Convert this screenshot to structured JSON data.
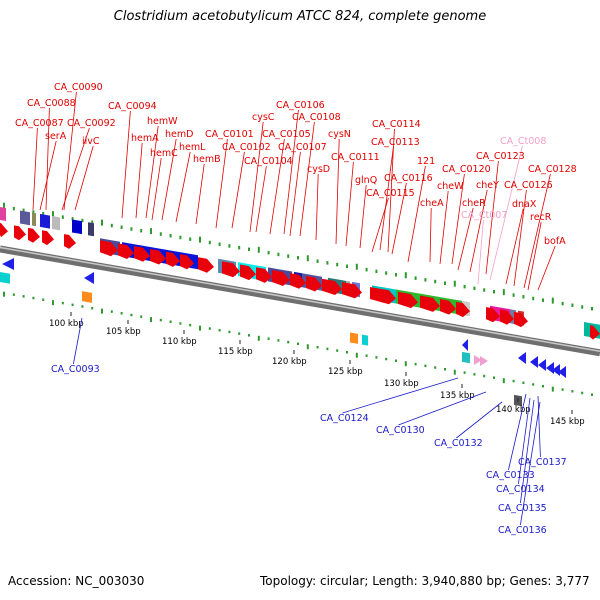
{
  "title": "Clostridium acetobutylicum ATCC 824, complete genome",
  "footer": {
    "accession": "Accession: NC_003030",
    "summary": "Topology: circular; Length: 3,940,880 bp; Genes: 3,777"
  },
  "colors": {
    "forward_gene": "#e8000b",
    "reverse_gene": "#1f1fe6",
    "forward_label": "#e00000",
    "reverse_label": "#1a1acc",
    "rna_label": "#f2a0c8",
    "backbone": "#8c8c8c",
    "tick_mark": "#2e9a2e"
  },
  "ticks": [
    "100 kbp",
    "105 kbp",
    "110 kbp",
    "115 kbp",
    "120 kbp",
    "125 kbp",
    "130 kbp",
    "135 kbp",
    "140 kbp",
    "145 kbp"
  ],
  "top_labels": [
    {
      "text": "CA_C0090",
      "kind": "forward"
    },
    {
      "text": "CA_C0088",
      "kind": "forward"
    },
    {
      "text": "CA_C0087",
      "kind": "forward"
    },
    {
      "text": "serA",
      "kind": "forward"
    },
    {
      "text": "ilvC",
      "kind": "forward"
    },
    {
      "text": "CA_C0092",
      "kind": "forward"
    },
    {
      "text": "CA_C0094",
      "kind": "forward"
    },
    {
      "text": "hemA",
      "kind": "forward"
    },
    {
      "text": "hemW",
      "kind": "forward"
    },
    {
      "text": "hemC",
      "kind": "forward"
    },
    {
      "text": "hemD",
      "kind": "forward"
    },
    {
      "text": "hemL",
      "kind": "forward"
    },
    {
      "text": "hemB",
      "kind": "forward"
    },
    {
      "text": "CA_C0101",
      "kind": "forward"
    },
    {
      "text": "CA_C0102",
      "kind": "forward"
    },
    {
      "text": "cysC",
      "kind": "forward"
    },
    {
      "text": "CA_C0104",
      "kind": "forward"
    },
    {
      "text": "CA_C0105",
      "kind": "forward"
    },
    {
      "text": "CA_C0106",
      "kind": "forward"
    },
    {
      "text": "CA_C0107",
      "kind": "forward"
    },
    {
      "text": "CA_C0108",
      "kind": "forward"
    },
    {
      "text": "cysD",
      "kind": "forward"
    },
    {
      "text": "cysN",
      "kind": "forward"
    },
    {
      "text": "CA_C0111",
      "kind": "forward"
    },
    {
      "text": "glnQ",
      "kind": "forward"
    },
    {
      "text": "CA_C0113",
      "kind": "forward"
    },
    {
      "text": "CA_C0114",
      "kind": "forward"
    },
    {
      "text": "CA_C0115",
      "kind": "forward"
    },
    {
      "text": "CA_C0116",
      "kind": "forward"
    },
    {
      "text": "121",
      "kind": "forward"
    },
    {
      "text": "cheA",
      "kind": "forward"
    },
    {
      "text": "cheW",
      "kind": "forward"
    },
    {
      "text": "CA_C0120",
      "kind": "forward"
    },
    {
      "text": "cheR",
      "kind": "forward"
    },
    {
      "text": "cheY",
      "kind": "forward"
    },
    {
      "text": "CA_C0123",
      "kind": "forward"
    },
    {
      "text": "CA_Ct008",
      "kind": "rna"
    },
    {
      "text": "CA_Ct007",
      "kind": "rna"
    },
    {
      "text": "dnaX",
      "kind": "forward"
    },
    {
      "text": "CA_C0126",
      "kind": "forward"
    },
    {
      "text": "CA_C0128",
      "kind": "forward"
    },
    {
      "text": "recR",
      "kind": "forward"
    },
    {
      "text": "bofA",
      "kind": "forward"
    }
  ],
  "bottom_labels": [
    {
      "text": "CA_C0093",
      "kind": "reverse"
    },
    {
      "text": "CA_C0124",
      "kind": "reverse"
    },
    {
      "text": "CA_C0130",
      "kind": "reverse"
    },
    {
      "text": "CA_C0132",
      "kind": "reverse"
    },
    {
      "text": "CA_C0133",
      "kind": "reverse"
    },
    {
      "text": "CA_C0137",
      "kind": "reverse"
    },
    {
      "text": "CA_C0134",
      "kind": "reverse"
    },
    {
      "text": "CA_C0135",
      "kind": "reverse"
    },
    {
      "text": "CA_C0136",
      "kind": "reverse"
    }
  ]
}
